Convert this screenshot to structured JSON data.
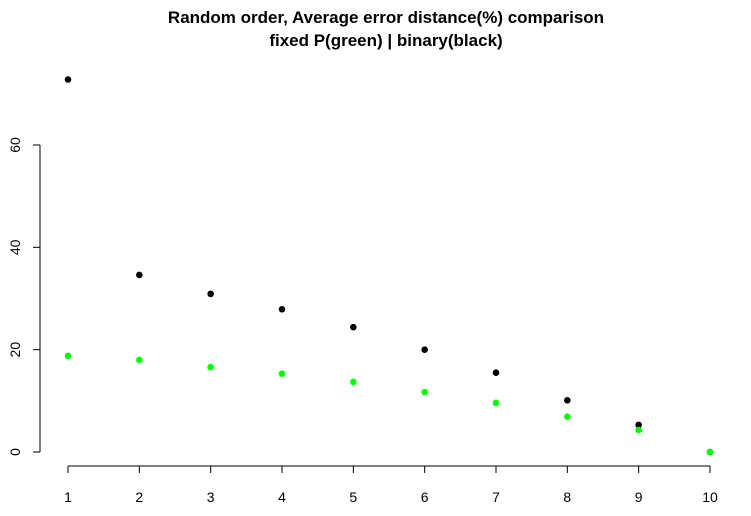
{
  "chart_data": {
    "type": "scatter",
    "title_lines": [
      "Random order, Average error distance(%) comparison",
      "fixed P(green) | binary(black)"
    ],
    "xlabel": "",
    "ylabel": "",
    "xlim": [
      1,
      10
    ],
    "ylim": [
      0,
      74
    ],
    "x_ticks": [
      1,
      2,
      3,
      4,
      5,
      6,
      7,
      8,
      9,
      10
    ],
    "y_ticks": [
      0,
      20,
      40,
      60
    ],
    "grid": false,
    "x": [
      1,
      2,
      3,
      4,
      5,
      6,
      7,
      8,
      9,
      10
    ],
    "series": [
      {
        "color": "#000000",
        "values": [
          72.8,
          34.6,
          30.9,
          27.9,
          24.4,
          20.0,
          15.5,
          10.1,
          5.3,
          0
        ]
      },
      {
        "color": "#00ff00",
        "values": [
          18.8,
          18.0,
          16.6,
          15.3,
          13.7,
          11.7,
          9.6,
          6.9,
          4.3,
          0
        ]
      }
    ]
  }
}
